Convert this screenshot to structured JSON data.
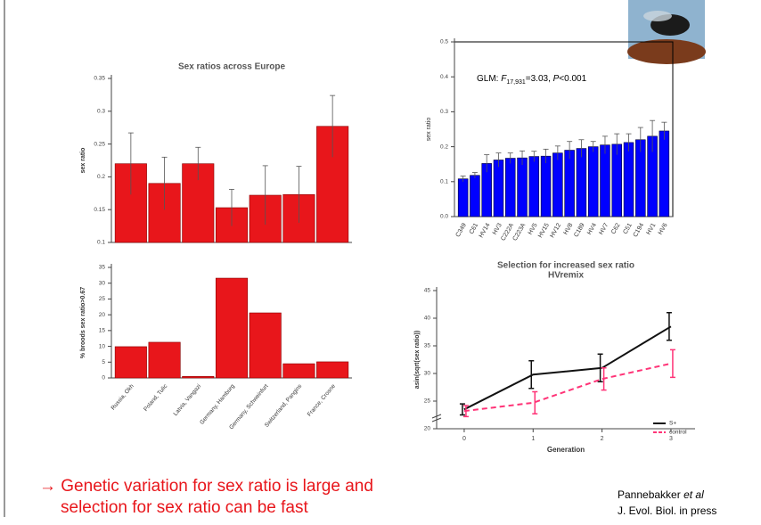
{
  "chart_data": [
    {
      "type": "bar",
      "title": "Sex ratios across Europe",
      "ylabel": "sex ratio",
      "color": "#e8161b",
      "values": [
        0.22,
        0.19,
        0.22,
        0.153,
        0.172,
        0.173,
        0.277
      ],
      "errors": [
        0.047,
        0.04,
        0.025,
        0.028,
        0.045,
        0.043,
        0.047
      ],
      "ylim": [
        0.1,
        0.35
      ],
      "yticks": [
        0.1,
        0.15,
        0.2,
        0.25,
        0.3,
        0.35
      ]
    },
    {
      "type": "bar",
      "ylabel": "% broods sex ratio>0.67",
      "color": "#e8161b",
      "categories": [
        "Russia, Okh",
        "Poland, Tulic",
        "Latvia, Vangazi",
        "Germany, Hamburg",
        "Germany, Schweinfurt",
        "Switzerland, Pangins",
        "France, Crosne"
      ],
      "values": [
        9.9,
        11.3,
        0.5,
        31.6,
        20.6,
        4.5,
        5.1
      ],
      "ylim": [
        0,
        35
      ],
      "yticks": [
        0,
        5,
        10,
        15,
        20,
        25,
        30,
        35
      ]
    },
    {
      "type": "bar",
      "ylabel": "sex ratio",
      "color": "#0000ff",
      "categories": [
        "C349",
        "C61",
        "HV14",
        "HV3",
        "C222A",
        "C223A",
        "HV5",
        "HV15",
        "HV12",
        "HV8",
        "C189",
        "HV4",
        "HV7",
        "C62",
        "C51",
        "C194",
        "HV1",
        "HV6"
      ],
      "values": [
        0.108,
        0.118,
        0.152,
        0.162,
        0.167,
        0.168,
        0.172,
        0.173,
        0.182,
        0.19,
        0.195,
        0.2,
        0.205,
        0.207,
        0.212,
        0.22,
        0.23,
        0.245
      ],
      "errors": [
        0.008,
        0.008,
        0.025,
        0.02,
        0.015,
        0.02,
        0.015,
        0.02,
        0.02,
        0.025,
        0.025,
        0.015,
        0.025,
        0.03,
        0.025,
        0.035,
        0.045,
        0.025
      ],
      "ylim": [
        0,
        0.5
      ],
      "yticks": [
        {
          "value": 0,
          "label": "0.0"
        },
        0.1,
        0.2,
        0.3,
        0.4,
        0.5
      ],
      "annotation": {
        "prefix": "GLM: ",
        "stat": "F",
        "sub": "17,931",
        "eq": "=3.03, ",
        "p": "P",
        "rest": "<0.001"
      }
    },
    {
      "type": "line",
      "title": "Selection for increased sex ratio",
      "subtitle": "HVremix",
      "xlabel": "Generation",
      "ylabel": "asin(sqrt(sex ratio))",
      "x": [
        0,
        1,
        2,
        3
      ],
      "xlim": [
        -0.4,
        3.35
      ],
      "xticks": [
        0,
        1,
        2,
        3
      ],
      "ylim": [
        20,
        45
      ],
      "yticks": [
        20,
        25,
        30,
        35,
        40,
        45
      ],
      "series": [
        {
          "name": "S+",
          "color": "#111111",
          "dash": false,
          "values": [
            23.5,
            29.8,
            31,
            38.5
          ],
          "errors": [
            1,
            2.5,
            2.5,
            2.5
          ]
        },
        {
          "name": "control",
          "color": "#ff3377",
          "dash": true,
          "values": [
            23.2,
            24.7,
            29,
            31.8
          ],
          "errors": [
            1,
            2,
            2,
            2.5
          ]
        }
      ]
    }
  ],
  "slide": {
    "conclusion": [
      "→ Genetic variation for sex ratio is large and",
      "selection for sex ratio can be fast"
    ],
    "citation": {
      "author": "Pannebakker ",
      "etal": "et al",
      "journal": "J. Evol. Biol. in press"
    }
  }
}
